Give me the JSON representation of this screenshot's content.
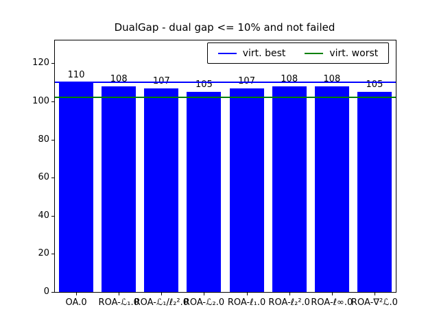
{
  "title": "DualGap - dual gap <= 10% and not failed",
  "legend": {
    "items": [
      {
        "label": "virt. best",
        "color": "#0000ff"
      },
      {
        "label": "virt. worst",
        "color": "#008000"
      }
    ]
  },
  "chart_data": {
    "type": "bar",
    "title": "DualGap - dual gap <= 10% and not failed",
    "categories": [
      "OA.0",
      "ROA-ℒ₁.0",
      "ROA-ℒ₁/ℓ₂².0",
      "ROA-ℒ₂.0",
      "ROA-ℓ₁.0",
      "ROA-ℓ₂².0",
      "ROA-ℓ∞.0",
      "ROA-∇²ℒ.0"
    ],
    "values": [
      110,
      108,
      107,
      105,
      107,
      108,
      108,
      105
    ],
    "bar_color": "#0000ff",
    "bar_value_labels": [
      "110",
      "108",
      "107",
      "105",
      "107",
      "108",
      "108",
      "105"
    ],
    "xlabel": "",
    "ylabel": "",
    "ylim": [
      0,
      132
    ],
    "yticks": [
      0,
      20,
      40,
      60,
      80,
      100,
      120
    ],
    "hlines": [
      {
        "name": "virt. best",
        "value": 110,
        "color": "#0000ff"
      },
      {
        "name": "virt. worst",
        "value": 102,
        "color": "#008000"
      }
    ],
    "legend_position": "upper right",
    "grid": false
  }
}
